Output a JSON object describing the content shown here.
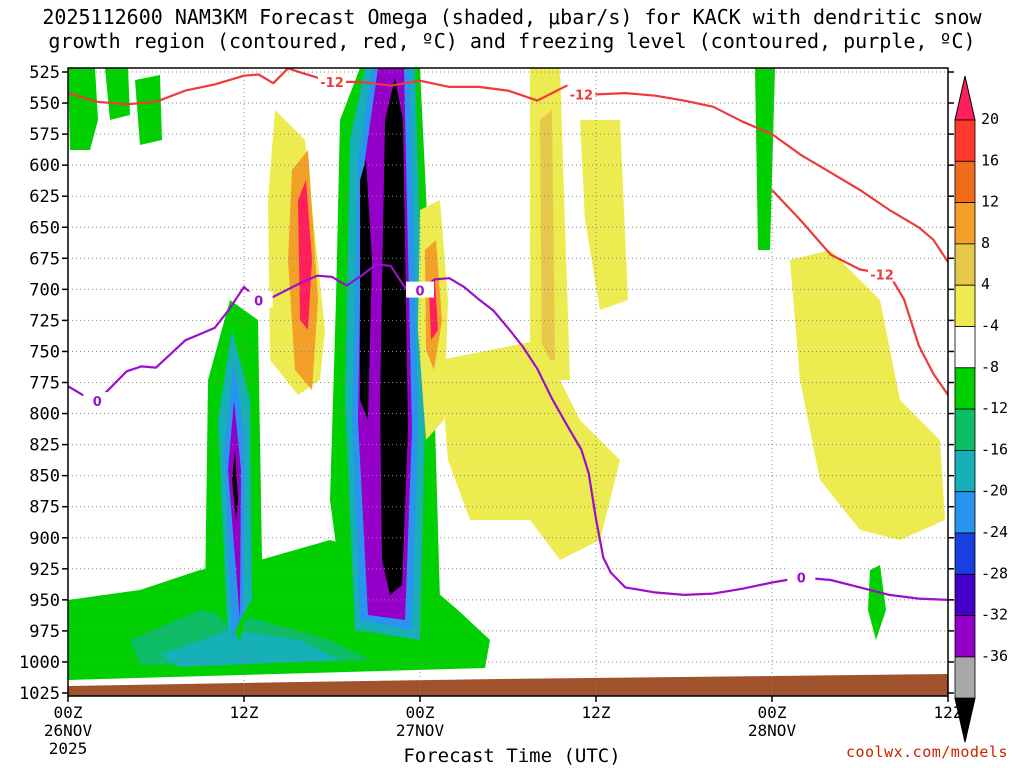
{
  "title_line1": "2025112600 NAM3KM Forecast Omega (shaded, μbar/s) for KACK with dendritic snow",
  "title_line2": "growth region (contoured, red, ºC) and freezing level (contoured, purple, ºC)",
  "credit": "coolwx.com/models",
  "chart_data": {
    "type": "heatmap",
    "title": "2025112600 NAM3KM Forecast Omega (shaded, μbar/s) for KACK with dendritic snow growth region (contoured, red, ºC) and freezing level (contoured, purple, ºC)",
    "xlabel": "Forecast Time (UTC)",
    "ylabel": "",
    "ylim": [
      1025,
      525
    ],
    "y_ticks": [
      "525",
      "550",
      "575",
      "600",
      "625",
      "650",
      "675",
      "700",
      "725",
      "750",
      "775",
      "800",
      "825",
      "850",
      "875",
      "900",
      "925",
      "950",
      "975",
      "1000",
      "1025"
    ],
    "x_ticks": [
      {
        "hour": 0,
        "label": "00Z",
        "date": "26NOV",
        "year": "2025"
      },
      {
        "hour": 12,
        "label": "12Z",
        "date": "",
        "year": ""
      },
      {
        "hour": 24,
        "label": "00Z",
        "date": "27NOV",
        "year": ""
      },
      {
        "hour": 36,
        "label": "12Z",
        "date": "",
        "year": ""
      },
      {
        "hour": 48,
        "label": "00Z",
        "date": "28NOV",
        "year": ""
      },
      {
        "hour": 60,
        "label": "12Z",
        "date": "",
        "year": ""
      }
    ],
    "xlim": [
      0,
      60
    ],
    "grid": true,
    "colorbar": {
      "labels": [
        "20",
        "16",
        "12",
        "8",
        "4",
        "-4",
        "-8",
        "-12",
        "-16",
        "-20",
        "-24",
        "-28",
        "-32",
        "-36"
      ],
      "colors": [
        "#ff1f5a",
        "#ff3a2a",
        "#f06c1a",
        "#f3a028",
        "#e6c84a",
        "#ecec50",
        "#ffffff",
        "#00d000",
        "#0dbd66",
        "#15b0b8",
        "#2894f0",
        "#1840e0",
        "#4500c8",
        "#9500c8",
        "#a8a8a8",
        "#000000"
      ]
    },
    "contour_labels": {
      "freezing_level": "0",
      "dendritic": "-12"
    },
    "freezing_level_0C": [
      [
        0,
        778
      ],
      [
        1,
        785
      ],
      [
        2,
        790
      ],
      [
        3,
        778
      ],
      [
        4,
        766
      ],
      [
        5,
        762
      ],
      [
        6,
        763
      ],
      [
        7,
        752
      ],
      [
        8,
        741
      ],
      [
        9,
        736
      ],
      [
        10,
        731
      ],
      [
        11,
        716
      ],
      [
        12,
        698
      ],
      [
        13,
        709
      ],
      [
        14,
        706
      ],
      [
        15,
        700
      ],
      [
        16,
        694
      ],
      [
        17,
        689
      ],
      [
        18,
        690
      ],
      [
        19,
        697
      ],
      [
        20,
        689
      ],
      [
        21,
        680
      ],
      [
        22,
        681
      ],
      [
        23,
        699
      ],
      [
        24,
        701
      ],
      [
        25,
        692
      ],
      [
        26,
        691
      ],
      [
        27,
        698
      ],
      [
        28,
        708
      ],
      [
        29,
        717
      ],
      [
        30,
        731
      ],
      [
        31,
        746
      ],
      [
        32,
        764
      ],
      [
        33,
        788
      ],
      [
        34,
        809
      ],
      [
        35,
        829
      ],
      [
        35.5,
        848
      ],
      [
        36,
        885
      ],
      [
        36.5,
        916
      ],
      [
        37,
        928
      ],
      [
        38,
        940
      ],
      [
        40,
        944
      ],
      [
        42,
        946
      ],
      [
        44,
        945
      ],
      [
        46,
        941
      ],
      [
        48,
        936
      ],
      [
        50,
        932
      ],
      [
        52,
        934
      ],
      [
        54,
        940
      ],
      [
        56,
        946
      ],
      [
        58,
        949
      ],
      [
        60,
        950
      ]
    ],
    "dendritic_minus12C": [
      [
        0,
        542
      ],
      [
        2,
        549
      ],
      [
        4,
        551
      ],
      [
        6,
        549
      ],
      [
        8,
        540
      ],
      [
        10,
        535
      ],
      [
        12,
        528
      ],
      [
        13,
        527
      ],
      [
        14,
        534
      ],
      [
        15,
        522
      ],
      [
        16,
        526
      ],
      [
        18,
        533
      ],
      [
        20,
        533
      ],
      [
        22,
        536
      ],
      [
        24,
        532
      ],
      [
        26,
        537
      ],
      [
        28,
        537
      ],
      [
        30,
        540
      ],
      [
        32,
        548
      ],
      [
        34,
        536
      ],
      [
        36,
        543
      ],
      [
        38,
        542
      ],
      [
        40,
        544
      ],
      [
        42,
        548
      ],
      [
        44,
        553
      ],
      [
        46,
        565
      ],
      [
        48,
        575
      ],
      [
        50,
        592
      ],
      [
        52,
        606
      ],
      [
        54,
        620
      ],
      [
        56,
        636
      ],
      [
        58,
        650
      ],
      [
        59,
        660
      ],
      [
        60,
        678
      ]
    ],
    "dendritic_minus12C_low": [
      [
        48,
        620
      ],
      [
        50,
        645
      ],
      [
        52,
        672
      ],
      [
        54,
        684
      ],
      [
        56,
        688
      ],
      [
        57,
        708
      ],
      [
        58,
        745
      ],
      [
        59,
        768
      ],
      [
        60,
        785
      ]
    ]
  }
}
